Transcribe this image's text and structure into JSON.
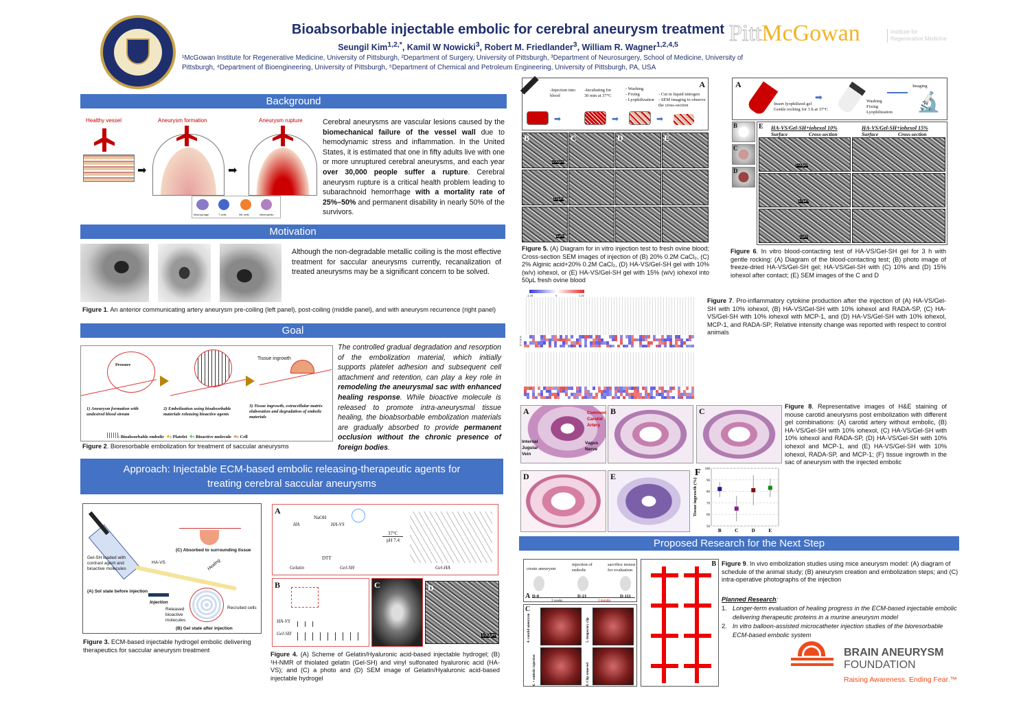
{
  "header": {
    "title": "Bioabsorbable injectable embolic for cerebral aneurysm treatment",
    "authors": [
      {
        "name": "Seungil Kim",
        "sup": "1,2,*"
      },
      {
        "name": "Kamil W Nowicki",
        "sup": "3"
      },
      {
        "name": "Robert M. Friedlander",
        "sup": "3"
      },
      {
        "name": "William R. Wagner",
        "sup": "1,2,4,5"
      }
    ],
    "affiliations_line1": "¹McGowan Institute for Regenerative Medicine, University of Pittsburgh, ²Department of Surgery, University of Pittsburgh, ³Department of Neurosurgery, School of Medicine, University of",
    "affiliations_line2": "Pittsburgh, ⁴Department of Bioengineering, University of Pittsburgh, ⁵Department of Chemical and Petroleum Engineering, University of Pittsburgh, PA, USA",
    "seal_text": "UNIVERSITY OF PITTSBURGH",
    "logo": {
      "pitt": "Pitt",
      "mcgowan": "McGowan",
      "sub1": "Institute for",
      "sub2": "Regenerative Medicine"
    }
  },
  "background": {
    "heading": "Background",
    "fig_labels": [
      "Healthy vessel",
      "Aneurysm formation",
      "Aneurysm rupture"
    ],
    "cell_labels": [
      "Macrophage",
      "T cells",
      "NK cells",
      "Neutrophils"
    ],
    "text": [
      {
        "t": "Cerebral aneurysms are vascular lesions caused by the ",
        "b": false
      },
      {
        "t": "biomechanical failure of the vessel wall",
        "b": true
      },
      {
        "t": " due to hemodynamic stress and inflammation. In the United States, it is estimated that one in fifty adults live with one or more unruptured cerebral aneurysms, and each year ",
        "b": false
      },
      {
        "t": "over 30,000 people suffer a rupture",
        "b": true
      },
      {
        "t": ". Cerebral aneurysm rupture is a critical health problem leading to subarachnoid hemorrhage ",
        "b": false
      },
      {
        "t": "with a mortality rate of 25%–50%",
        "b": true
      },
      {
        "t": " and permanent disability in nearly 50% of the survivors.",
        "b": false
      }
    ]
  },
  "motivation": {
    "heading": "Motivation",
    "text": "Although the non-degradable metallic coiling is the most effective treatment for saccular aneurysms currently, recanalization of treated aneurysms may be a significant concern to be solved.",
    "caption_label": "Figure 1",
    "caption": ". An anterior communicating artery aneurysm pre-coiling (left panel), post-coiling (middle panel), and with aneurysm recurrence (right panel)"
  },
  "goal": {
    "heading": "Goal",
    "fig_steps": [
      "1) Aneurysm formation with undesired blood stream",
      "2) Embolization using bioabsorbable materials releasing bioactive agents",
      "3) Tissue ingrowth, extracellular matrix elaboration and degradation of embolic materials"
    ],
    "fig_pressure": "Pressure",
    "fig_tissue": "Tissue ingrowth",
    "legend": [
      ": Bioabsorbable embolic",
      ": Platelet",
      ": Bioactive molecule",
      ": Cell"
    ],
    "caption_label": "Figure 2",
    "caption": ". Bioresorbable embolization for treatment of saccular aneurysms",
    "text": [
      {
        "t": "The controlled gradual degradation and resorption of the embolization material, which initially supports platelet adhesion and subsequent cell attachment and retention, can play a key role in ",
        "b": false
      },
      {
        "t": "remodeling the aneurysmal sac with enhanced healing response",
        "b": true
      },
      {
        "t": ". While bioactive molecule is released to promote intra-aneurysmal tissue healing, the bioabsorbable embolization materials are gradually absorbed to provide ",
        "b": false
      },
      {
        "t": "permanent occlusion without the chronic presence of foreign bodies",
        "b": true
      },
      {
        "t": ".",
        "b": false
      }
    ]
  },
  "approach": {
    "heading_line1": "Approach: Injectable ECM-based embolic releasing-therapeutic agents for",
    "heading_line2": "treating cerebral saccular aneurysms",
    "fig3": {
      "labels": [
        "Gel-SH loaded with contrast agent and bioactive molecules",
        "HA-VS",
        "(A) Sol state before injection",
        "Injection",
        "(C) Absorbed to surrounding tissue",
        "Healing",
        "Released bioactive molecules",
        "Recruited cells",
        "(B) Gel state after injection"
      ],
      "caption_label": "Figure 3.",
      "caption": " ECM-based injectable hydrogel embolic delivering therapeutics for saccular aneurysm treatment"
    },
    "fig4": {
      "panels": [
        "A",
        "B",
        "C",
        "D"
      ],
      "labels": [
        "HA",
        "HA-VS",
        "NaOH",
        "Gelatin",
        "Gel-SH",
        "DTT",
        "Gel-HA",
        "37°C",
        "pH 7.4",
        "HA-VS",
        "Gel-SH",
        "100μm"
      ],
      "caption_label": "Figure 4.",
      "caption": " (A) Scheme of Gelatin/Hyaluronic acid-based injectable hydrogel; (B) ¹H-NMR of thiolated gelatin (Gel-SH) and vinyl sulfonated hyaluronic acid (HA-VS); and (C) a photo and (D) SEM image of Gelatin/Hyaluronic acid-based injectable hydrogel"
    }
  },
  "fig5": {
    "steps": [
      "-Injection into blood",
      "-Incubating for 30 min at 37°C",
      "- Washing\n- Fixing\n- Lyophilization",
      "- Cut in liquid nitrogen\n- SEM imaging to observe the cross-section"
    ],
    "panels": [
      "A",
      "B",
      "C",
      "D",
      "E"
    ],
    "scales": [
      "100μm",
      "10μm",
      "1μm"
    ],
    "caption_label": "Figure 5.",
    "caption": " (A) Diagram for in vitro injection test to fresh ovine blood; Cross-section SEM images of injection of (B) 20% 0.2M CaCl₂, (C) 2% Alginic acid+20% 0.2M CaCl₂, (D) HA-VS/Gel-SH gel with 10% (w/v) iohexol, or (E) HA-VS/Gel-SH gel with 15% (w/v) iohexol into 50μL fresh ovine blood"
  },
  "fig6": {
    "steps": [
      "Insert lyophilized gel\nGentle rocking for 3 h at 37°C",
      "Washing\nFixing\nLyophilization",
      "Imaging"
    ],
    "panels": [
      "A",
      "B",
      "C",
      "D",
      "E"
    ],
    "col_titles": [
      "HA-VS/Gel-SH+iohexol 10%",
      "HA-VS/Gel-SH+iohexol 15%"
    ],
    "col_sub": [
      "Surface",
      "Cross-section",
      "Surface",
      "Cross-section"
    ],
    "scales": [
      "100μm",
      "10μm",
      "1μm"
    ],
    "caption_label": "Figure 6",
    "caption": ". In vitro blood-contacting test of HA-VS/Gel-SH gel for 3 h with gentle rocking: (A) Diagram of the blood-contacting test; (B) photo image of freeze-dried HA-VS/Gel-SH gel; HA-VS/Gel-SH with (C) 10% and (D) 15% iohexol after contact; (E) SEM images of the C and D"
  },
  "fig7": {
    "scale": [
      "-1.25",
      "0",
      "1.25"
    ],
    "rows": [
      "A",
      "B",
      "C",
      "D"
    ],
    "colors": {
      "low": "#3a3adb",
      "mid": "#ffffff",
      "high": "#e03030"
    },
    "caption_label": "Figure 7",
    "caption": ". Pro-inflammatory cytokine production after the injection of (A) HA-VS/Gel-SH with 10% iohexol, (B) HA-VS/Gel-SH with 10% iohexol and RADA-SP, (C) HA-VS/Gel-SH with 10% iohexol with MCP-1, and (D) HA-VS/Gel-SH with 10% iohexol, MCP-1, and RADA-SP; Relative intensity change was reported with respect to control animals"
  },
  "fig8": {
    "panels": [
      "A",
      "B",
      "C",
      "D",
      "E",
      "F"
    ],
    "labels": [
      "Common Carotid Artery",
      "Internal Jugular Vein",
      "Vagus Nerve"
    ],
    "caption_label": "Figure 8",
    "caption": ". Representative images of H&E staining of mouse carotid aneurysms post embolization with different gel combinations: (A) carotid artery without embolic, (B) HA-VS/Gel-SH with 10% iohexol, (C) HA-VS/Gel-SH with 10% iohexol and RADA-SP, (D) HA-VS/Gel-SH with 10% iohexol and MCP-1, and (E) HA-VS/Gel-SH with 10% iohexol, RADA-SP, and MCP-1; (F) tissue ingrowth in the sac of aneurysm with the injected embolic"
  },
  "chart_data": {
    "type": "scatter",
    "title": "F",
    "xlabel": "",
    "ylabel": "Tissue ingrowth (%)",
    "categories": [
      "B",
      "C",
      "D",
      "E"
    ],
    "values": [
      82,
      65,
      81,
      83
    ],
    "error_low": [
      75,
      54,
      68,
      75
    ],
    "error_high": [
      88,
      76,
      94,
      91
    ],
    "colors": [
      "#1a1a8c",
      "#8c1a8c",
      "#7a1010",
      "#138a13"
    ],
    "ylim": [
      50,
      100
    ],
    "yticks": [
      50,
      60,
      70,
      80,
      90,
      100
    ],
    "grid": true
  },
  "proposed": {
    "heading": "Proposed Research for the Next Step",
    "fig9": {
      "timeline": [
        "create aneurysm",
        "injection of embolic",
        "sacrifice mouse for evaluation"
      ],
      "days": [
        "D-0",
        "D-21",
        "D-111"
      ],
      "intervals": [
        "3 weeks",
        "3 months"
      ],
      "panels": [
        "A",
        "B",
        "C"
      ],
      "c_labels": [
        "4. carotid aneurysm",
        "5. temporary clip",
        "6. + embolic injection",
        "8. Clip removed"
      ]
    },
    "caption_label": "Figure 9",
    "caption": ". In vivo embolization studies using mice aneurysm model: (A) diagram of schedule of the animal study; (B) aneurysm creation and embolization steps; and (C) intra-operative photographs of the injection",
    "planned_title": "Planned Research",
    "planned": [
      "Longer-term evaluation of healing progress in the ECM-based injectable embolic delivering therapeutic proteins in a murine aneurysm model",
      "In vitro balloon-assisted microcatheter injection studies of the bioresorbable ECM-based embolic system"
    ],
    "foundation": {
      "line1": "BRAIN ANEURYSM",
      "line2": "FOUNDATION",
      "tagline": "Raising Awareness. Ending Fear.™",
      "color": "#ee4b1c"
    }
  },
  "colors": {
    "section_bar": "#4472c4",
    "title": "#1f2f6e",
    "mcgowan_gold": "#f0b323"
  }
}
